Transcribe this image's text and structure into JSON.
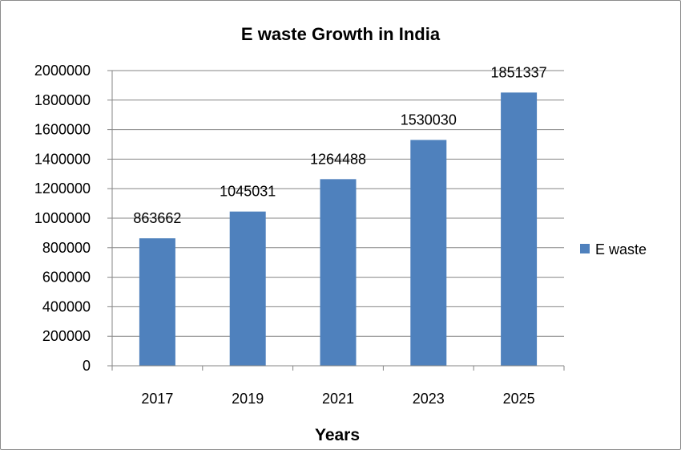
{
  "chart_data": {
    "type": "bar",
    "title": "E waste Growth in India",
    "xlabel": "Years",
    "ylabel": "",
    "categories": [
      "2017",
      "2019",
      "2021",
      "2023",
      "2025"
    ],
    "series": [
      {
        "name": "E waste",
        "values": [
          863662,
          1045031,
          1264488,
          1530030,
          1851337
        ],
        "color": "#4F81BD"
      }
    ],
    "ylim": [
      0,
      2000000
    ],
    "yticks": [
      "0",
      "200000",
      "400000",
      "600000",
      "800000",
      "1000000",
      "1200000",
      "1400000",
      "1600000",
      "1800000",
      "2000000"
    ],
    "data_labels": true,
    "grid": true,
    "legend": "right"
  }
}
